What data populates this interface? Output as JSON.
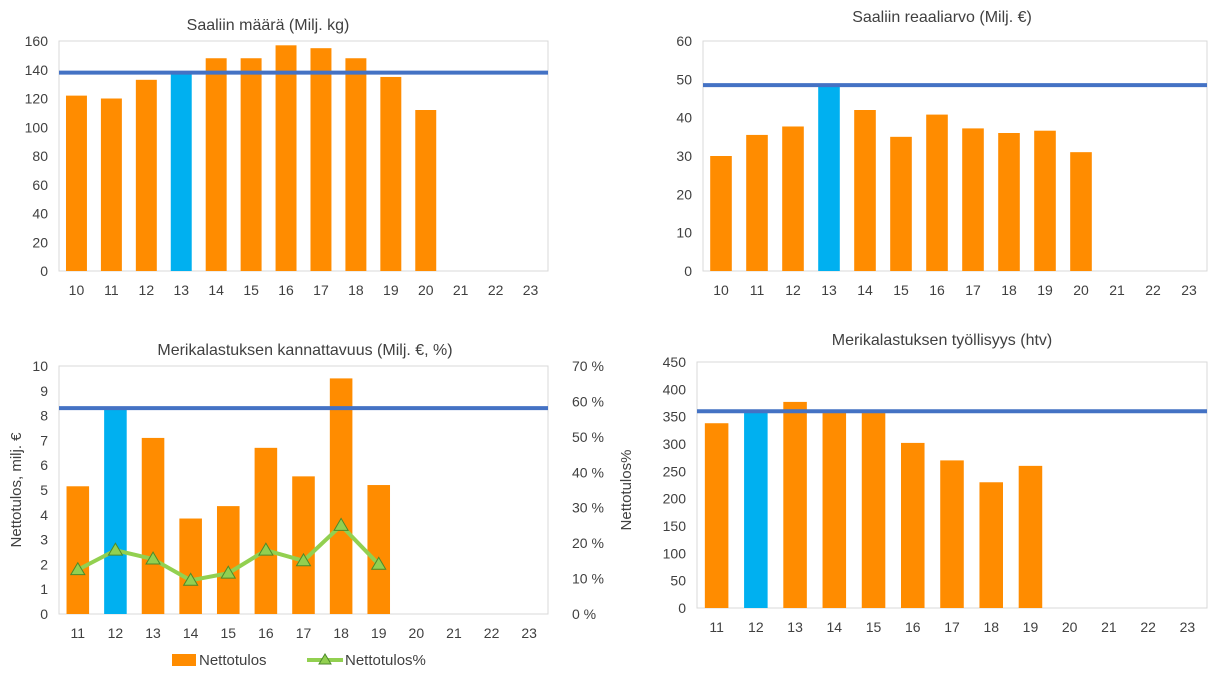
{
  "colors": {
    "bar": "#FF8C00",
    "highlight": "#00B0F0",
    "refline": "#4472C4",
    "line": "#92D050",
    "grid": "#d9d9d9"
  },
  "chart_data": [
    {
      "type": "bar",
      "title": "Saaliin määrä (Milj. kg)",
      "categories": [
        "10",
        "11",
        "12",
        "13",
        "14",
        "15",
        "16",
        "17",
        "18",
        "19",
        "20",
        "21",
        "22",
        "23"
      ],
      "values": [
        122,
        120,
        133,
        137,
        148,
        148,
        157,
        155,
        148,
        135,
        112,
        null,
        null,
        null
      ],
      "highlight_category": "13",
      "reference_line": 138,
      "ylim": [
        0,
        160
      ],
      "yticks": [
        "0",
        "20",
        "40",
        "60",
        "80",
        "100",
        "120",
        "140",
        "160"
      ],
      "grid": false
    },
    {
      "type": "bar",
      "title": "Saaliin reaaliarvo (Milj. €)",
      "categories": [
        "10",
        "11",
        "12",
        "13",
        "14",
        "15",
        "16",
        "17",
        "18",
        "19",
        "20",
        "21",
        "22",
        "23"
      ],
      "values": [
        30,
        35.5,
        37.7,
        48.5,
        42,
        35,
        40.8,
        37.2,
        36,
        36.6,
        31,
        null,
        null,
        null
      ],
      "highlight_category": "13",
      "reference_line": 48.5,
      "ylim": [
        0,
        60
      ],
      "yticks": [
        "0",
        "10",
        "20",
        "30",
        "40",
        "50",
        "60"
      ],
      "grid": false
    },
    {
      "type": "bar",
      "title": "Merikalastuksen kannattavuus (Milj. €, %)",
      "categories": [
        "11",
        "12",
        "13",
        "14",
        "15",
        "16",
        "17",
        "18",
        "19",
        "20",
        "21",
        "22",
        "23"
      ],
      "values": [
        5.15,
        8.3,
        7.1,
        3.85,
        4.35,
        6.7,
        5.55,
        9.5,
        5.2,
        null,
        null,
        null,
        null
      ],
      "highlight_category": "12",
      "reference_line": 8.3,
      "ylim": [
        0,
        10
      ],
      "yticks": [
        "0",
        "1",
        "2",
        "3",
        "4",
        "5",
        "6",
        "7",
        "8",
        "9",
        "10"
      ],
      "ylabel": "Nettotulos, milj. €",
      "y2label": "Nettotulos%",
      "y2lim": [
        0,
        70
      ],
      "y2ticks": [
        "0 %",
        "10 %",
        "20 %",
        "30 %",
        "40 %",
        "50 %",
        "60 %",
        "70 %"
      ],
      "line_series": {
        "name": "Nettotulos%",
        "values": [
          12.5,
          18,
          15.5,
          9.5,
          11.5,
          18,
          15,
          25,
          14,
          null,
          null,
          null,
          null
        ]
      },
      "legend": [
        "Nettotulos",
        "Nettotulos%"
      ],
      "legend_position": "bottom",
      "grid": false
    },
    {
      "type": "bar",
      "title": "Merikalastuksen työllisyys (htv)",
      "categories": [
        "11",
        "12",
        "13",
        "14",
        "15",
        "16",
        "17",
        "18",
        "19",
        "20",
        "21",
        "22",
        "23"
      ],
      "values": [
        338,
        360,
        377,
        358,
        360,
        302,
        270,
        230,
        260,
        null,
        null,
        null,
        null
      ],
      "highlight_category": "12",
      "reference_line": 360,
      "ylim": [
        0,
        450
      ],
      "yticks": [
        "0",
        "50",
        "100",
        "150",
        "200",
        "250",
        "300",
        "350",
        "400",
        "450"
      ],
      "grid": false
    }
  ]
}
